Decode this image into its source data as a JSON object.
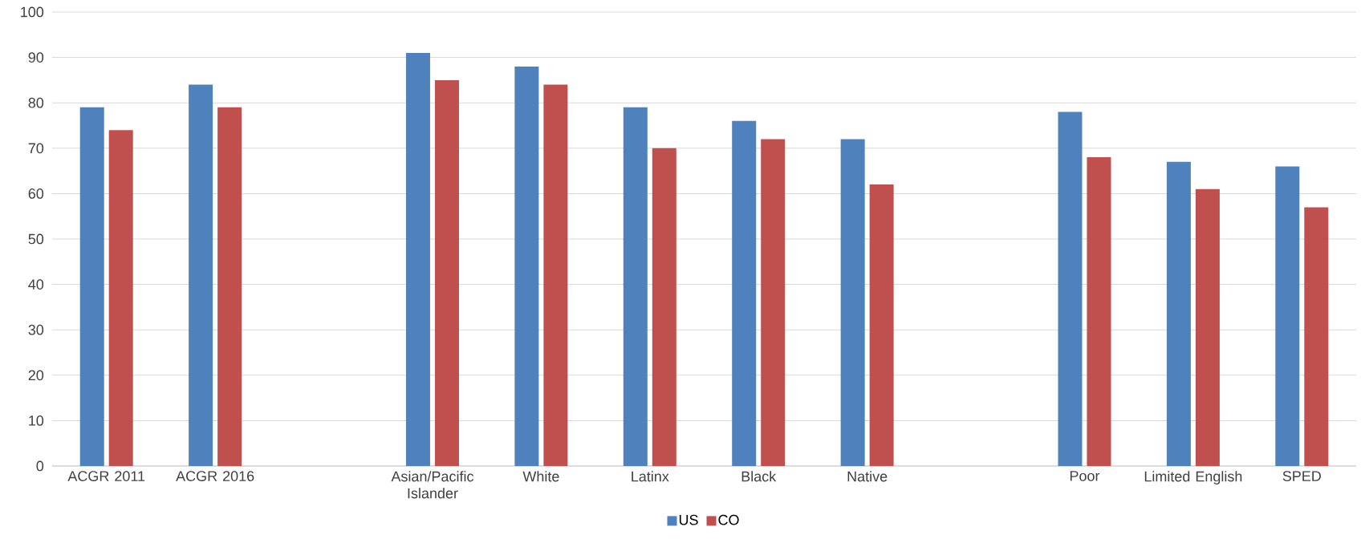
{
  "chart_data": {
    "type": "bar",
    "categories": [
      "ACGR 2011",
      "ACGR 2016",
      null,
      "Asian/Pacific Islander",
      "White",
      "Latinx",
      "Black",
      "Native",
      null,
      "Poor",
      "Limited English",
      "SPED"
    ],
    "series": [
      {
        "name": "US",
        "color": "#4f81bd",
        "values": [
          79,
          84,
          null,
          91,
          88,
          79,
          76,
          72,
          null,
          78,
          67,
          66
        ]
      },
      {
        "name": "CO",
        "color": "#c0504d",
        "values": [
          74,
          79,
          null,
          85,
          84,
          70,
          72,
          62,
          null,
          68,
          61,
          57
        ]
      }
    ],
    "ylim": [
      0,
      100
    ],
    "yticks": [
      0,
      10,
      20,
      30,
      40,
      50,
      60,
      70,
      80,
      90,
      100
    ],
    "grid": "y",
    "legend": "bottom"
  }
}
